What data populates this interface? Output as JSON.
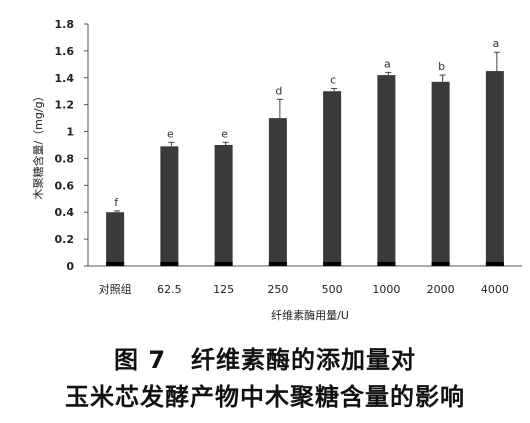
{
  "chart_data": {
    "type": "bar",
    "categories": [
      "对照组",
      "62.5",
      "125",
      "250",
      "500",
      "1000",
      "2000",
      "4000"
    ],
    "values": [
      0.4,
      0.89,
      0.9,
      1.1,
      1.3,
      1.42,
      1.37,
      1.45
    ],
    "errors": [
      0.01,
      0.03,
      0.02,
      0.14,
      0.02,
      0.02,
      0.05,
      0.14
    ],
    "significance": [
      "f",
      "e",
      "e",
      "d",
      "c",
      "a",
      "b",
      "a"
    ],
    "xlabel": "纤维素酶用量/U",
    "ylabel": "木聚糖含量/（mg/g）",
    "ylim": [
      0,
      1.8
    ],
    "yticks": [
      "0",
      "0.2",
      "0.4",
      "0.6",
      "0.8",
      "1",
      "1.2",
      "1.4",
      "1.6",
      "1.8"
    ],
    "bar_color": "#3a3a3a",
    "grid": false
  },
  "caption": {
    "line1": "图 7　纤维素酶的添加量对",
    "line2": "玉米芯发酵产物中木聚糖含量的影响"
  }
}
